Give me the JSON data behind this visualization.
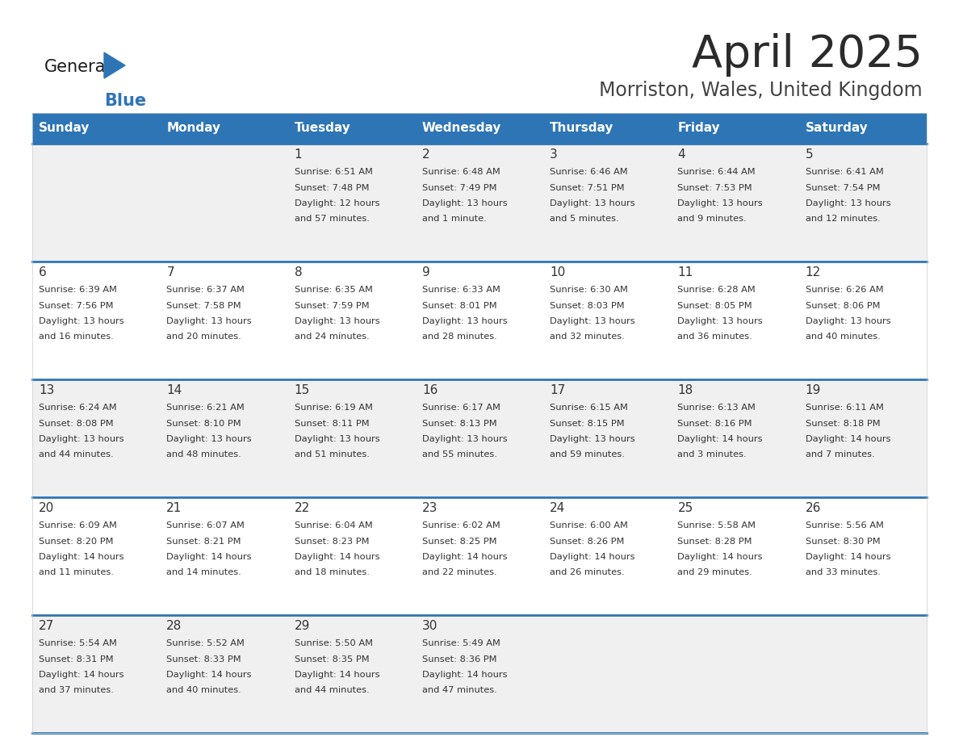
{
  "title": "April 2025",
  "subtitle": "Morriston, Wales, United Kingdom",
  "days_of_week": [
    "Sunday",
    "Monday",
    "Tuesday",
    "Wednesday",
    "Thursday",
    "Friday",
    "Saturday"
  ],
  "header_bg": "#2E75B6",
  "header_text": "#FFFFFF",
  "row_bg_even": "#F0F0F0",
  "row_bg_odd": "#FFFFFF",
  "cell_text_color": "#333333",
  "day_num_color": "#333333",
  "separator_color": "#2E75B6",
  "title_color": "#2B2B2B",
  "subtitle_color": "#444444",
  "logo_general_color": "#1A1A1A",
  "logo_blue_color": "#2E75B6",
  "weeks": [
    [
      {
        "day": "",
        "info": ""
      },
      {
        "day": "",
        "info": ""
      },
      {
        "day": "1",
        "info": "Sunrise: 6:51 AM\nSunset: 7:48 PM\nDaylight: 12 hours\nand 57 minutes."
      },
      {
        "day": "2",
        "info": "Sunrise: 6:48 AM\nSunset: 7:49 PM\nDaylight: 13 hours\nand 1 minute."
      },
      {
        "day": "3",
        "info": "Sunrise: 6:46 AM\nSunset: 7:51 PM\nDaylight: 13 hours\nand 5 minutes."
      },
      {
        "day": "4",
        "info": "Sunrise: 6:44 AM\nSunset: 7:53 PM\nDaylight: 13 hours\nand 9 minutes."
      },
      {
        "day": "5",
        "info": "Sunrise: 6:41 AM\nSunset: 7:54 PM\nDaylight: 13 hours\nand 12 minutes."
      }
    ],
    [
      {
        "day": "6",
        "info": "Sunrise: 6:39 AM\nSunset: 7:56 PM\nDaylight: 13 hours\nand 16 minutes."
      },
      {
        "day": "7",
        "info": "Sunrise: 6:37 AM\nSunset: 7:58 PM\nDaylight: 13 hours\nand 20 minutes."
      },
      {
        "day": "8",
        "info": "Sunrise: 6:35 AM\nSunset: 7:59 PM\nDaylight: 13 hours\nand 24 minutes."
      },
      {
        "day": "9",
        "info": "Sunrise: 6:33 AM\nSunset: 8:01 PM\nDaylight: 13 hours\nand 28 minutes."
      },
      {
        "day": "10",
        "info": "Sunrise: 6:30 AM\nSunset: 8:03 PM\nDaylight: 13 hours\nand 32 minutes."
      },
      {
        "day": "11",
        "info": "Sunrise: 6:28 AM\nSunset: 8:05 PM\nDaylight: 13 hours\nand 36 minutes."
      },
      {
        "day": "12",
        "info": "Sunrise: 6:26 AM\nSunset: 8:06 PM\nDaylight: 13 hours\nand 40 minutes."
      }
    ],
    [
      {
        "day": "13",
        "info": "Sunrise: 6:24 AM\nSunset: 8:08 PM\nDaylight: 13 hours\nand 44 minutes."
      },
      {
        "day": "14",
        "info": "Sunrise: 6:21 AM\nSunset: 8:10 PM\nDaylight: 13 hours\nand 48 minutes."
      },
      {
        "day": "15",
        "info": "Sunrise: 6:19 AM\nSunset: 8:11 PM\nDaylight: 13 hours\nand 51 minutes."
      },
      {
        "day": "16",
        "info": "Sunrise: 6:17 AM\nSunset: 8:13 PM\nDaylight: 13 hours\nand 55 minutes."
      },
      {
        "day": "17",
        "info": "Sunrise: 6:15 AM\nSunset: 8:15 PM\nDaylight: 13 hours\nand 59 minutes."
      },
      {
        "day": "18",
        "info": "Sunrise: 6:13 AM\nSunset: 8:16 PM\nDaylight: 14 hours\nand 3 minutes."
      },
      {
        "day": "19",
        "info": "Sunrise: 6:11 AM\nSunset: 8:18 PM\nDaylight: 14 hours\nand 7 minutes."
      }
    ],
    [
      {
        "day": "20",
        "info": "Sunrise: 6:09 AM\nSunset: 8:20 PM\nDaylight: 14 hours\nand 11 minutes."
      },
      {
        "day": "21",
        "info": "Sunrise: 6:07 AM\nSunset: 8:21 PM\nDaylight: 14 hours\nand 14 minutes."
      },
      {
        "day": "22",
        "info": "Sunrise: 6:04 AM\nSunset: 8:23 PM\nDaylight: 14 hours\nand 18 minutes."
      },
      {
        "day": "23",
        "info": "Sunrise: 6:02 AM\nSunset: 8:25 PM\nDaylight: 14 hours\nand 22 minutes."
      },
      {
        "day": "24",
        "info": "Sunrise: 6:00 AM\nSunset: 8:26 PM\nDaylight: 14 hours\nand 26 minutes."
      },
      {
        "day": "25",
        "info": "Sunrise: 5:58 AM\nSunset: 8:28 PM\nDaylight: 14 hours\nand 29 minutes."
      },
      {
        "day": "26",
        "info": "Sunrise: 5:56 AM\nSunset: 8:30 PM\nDaylight: 14 hours\nand 33 minutes."
      }
    ],
    [
      {
        "day": "27",
        "info": "Sunrise: 5:54 AM\nSunset: 8:31 PM\nDaylight: 14 hours\nand 37 minutes."
      },
      {
        "day": "28",
        "info": "Sunrise: 5:52 AM\nSunset: 8:33 PM\nDaylight: 14 hours\nand 40 minutes."
      },
      {
        "day": "29",
        "info": "Sunrise: 5:50 AM\nSunset: 8:35 PM\nDaylight: 14 hours\nand 44 minutes."
      },
      {
        "day": "30",
        "info": "Sunrise: 5:49 AM\nSunset: 8:36 PM\nDaylight: 14 hours\nand 47 minutes."
      },
      {
        "day": "",
        "info": ""
      },
      {
        "day": "",
        "info": ""
      },
      {
        "day": "",
        "info": ""
      }
    ]
  ]
}
